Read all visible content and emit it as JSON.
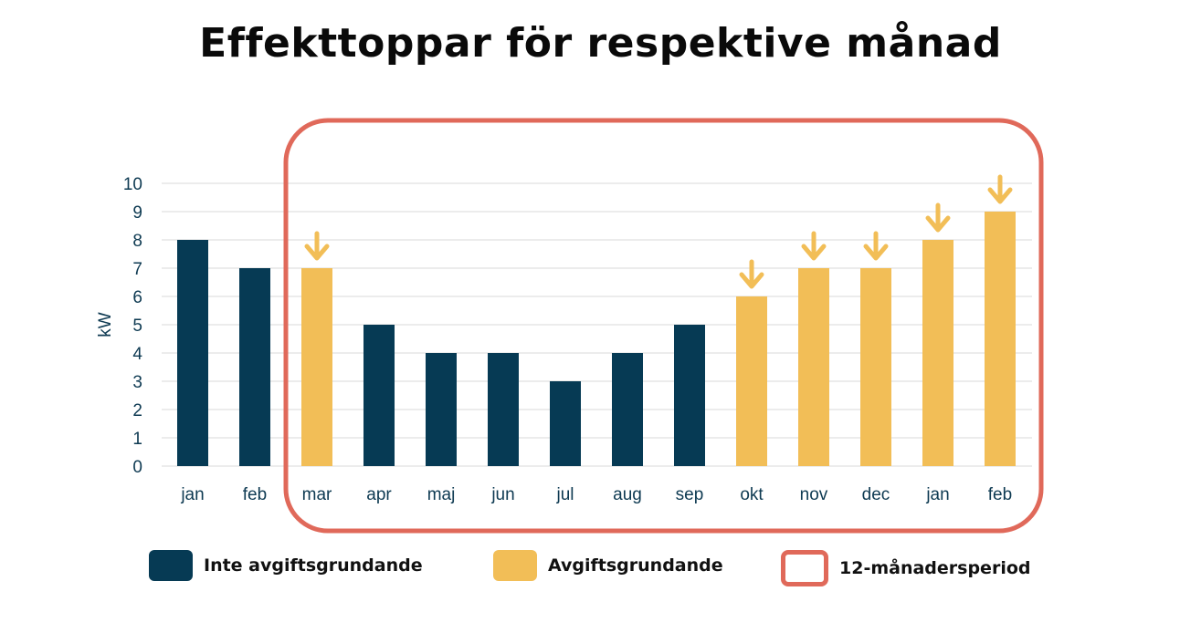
{
  "chart_data": {
    "type": "bar",
    "title": "Effekttoppar för respektive månad",
    "ylabel": "kW",
    "xlabel": "",
    "ylim": [
      0,
      10
    ],
    "yticks": [
      0,
      1,
      2,
      3,
      4,
      5,
      6,
      7,
      8,
      9,
      10
    ],
    "grid": true,
    "categories": [
      "jan",
      "feb",
      "mar",
      "apr",
      "maj",
      "jun",
      "jul",
      "aug",
      "sep",
      "okt",
      "nov",
      "dec",
      "jan",
      "feb"
    ],
    "values": [
      8,
      7,
      7,
      5,
      4,
      4,
      3,
      4,
      5,
      6,
      7,
      7,
      8,
      9
    ],
    "fee_based": [
      false,
      false,
      true,
      false,
      false,
      false,
      false,
      false,
      false,
      true,
      true,
      true,
      true,
      true
    ],
    "highlight_period": {
      "from_index": 2,
      "to_index": 13,
      "label": "12-månadersperiod"
    },
    "legend": [
      {
        "label": "Inte avgiftsgrundande",
        "color": "#063a54"
      },
      {
        "label": "Avgiftsgrundande",
        "color": "#f2be57"
      },
      {
        "label": "12-månadersperiod",
        "color": "#e0695a"
      }
    ],
    "legend_position": "bottom"
  }
}
